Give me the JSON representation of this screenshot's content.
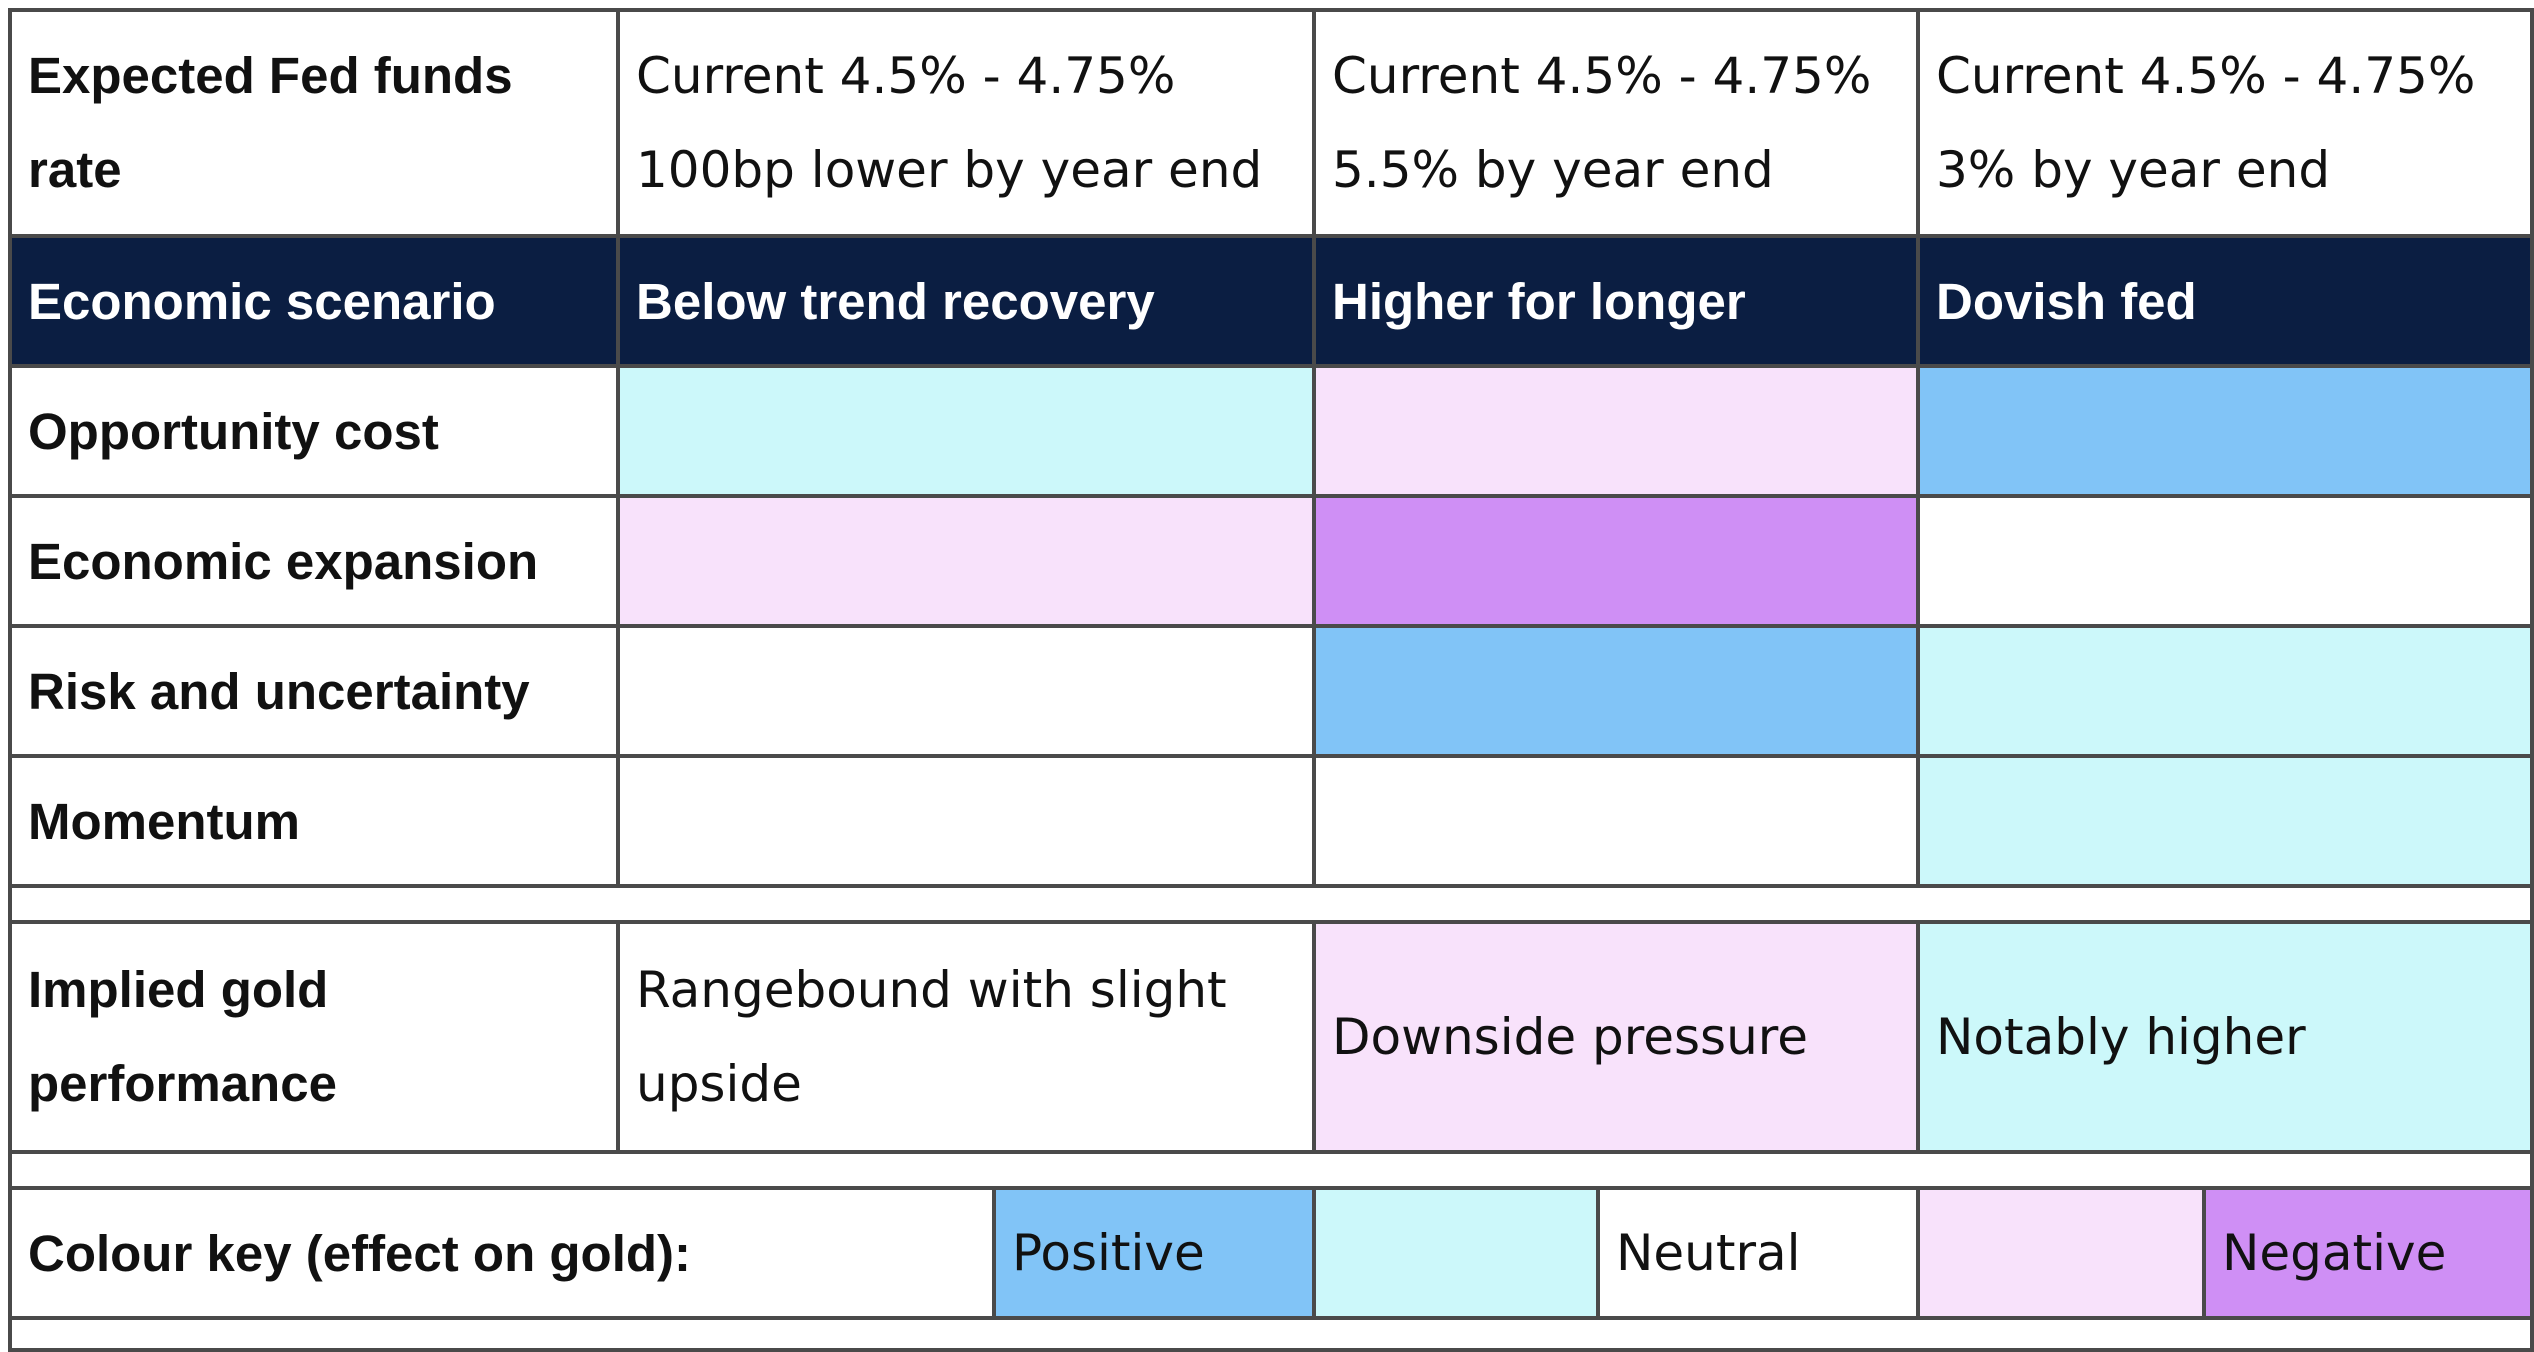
{
  "colors": {
    "header": "#0b1e42",
    "positive": "#81c4f7",
    "slightly_positive": "#ccf8fa",
    "neutral": "#ffffff",
    "slightly_negative": "#f8e2fb",
    "negative": "#cf8ff5"
  },
  "fed_row": {
    "label_line1": "Expected Fed funds",
    "label_line2": "rate",
    "scenarios": [
      {
        "line1": "Current 4.5% - 4.75%",
        "line2": "100bp lower by year end"
      },
      {
        "line1": "Current 4.5% - 4.75%",
        "line2": "5.5% by year end"
      },
      {
        "line1": "Current 4.5% - 4.75%",
        "line2": "3% by year end"
      }
    ]
  },
  "header": {
    "label": "Economic scenario",
    "scenarios": [
      "Below trend recovery",
      "Higher for longer",
      "Dovish fed"
    ]
  },
  "factors": [
    {
      "label": "Opportunity cost",
      "effects": [
        "slightly_positive",
        "slightly_negative",
        "positive"
      ]
    },
    {
      "label": "Economic expansion",
      "effects": [
        "slightly_negative",
        "negative",
        "neutral"
      ]
    },
    {
      "label": "Risk and uncertainty",
      "effects": [
        "neutral",
        "positive",
        "slightly_positive"
      ]
    },
    {
      "label": "Momentum",
      "effects": [
        "neutral",
        "neutral",
        "slightly_positive"
      ]
    }
  ],
  "implied": {
    "label_line1": "Implied gold",
    "label_line2": "performance",
    "scenarios": [
      {
        "line1": "Rangebound with slight",
        "line2": "upside",
        "effect": "neutral"
      },
      {
        "line1": "Downside pressure",
        "line2": "",
        "effect": "slightly_negative"
      },
      {
        "line1": "Notably higher",
        "line2": "",
        "effect": "slightly_positive"
      }
    ]
  },
  "key": {
    "label": "Colour key (effect on gold):",
    "positive": "Positive",
    "neutral": "Neutral",
    "negative": "Negative"
  }
}
